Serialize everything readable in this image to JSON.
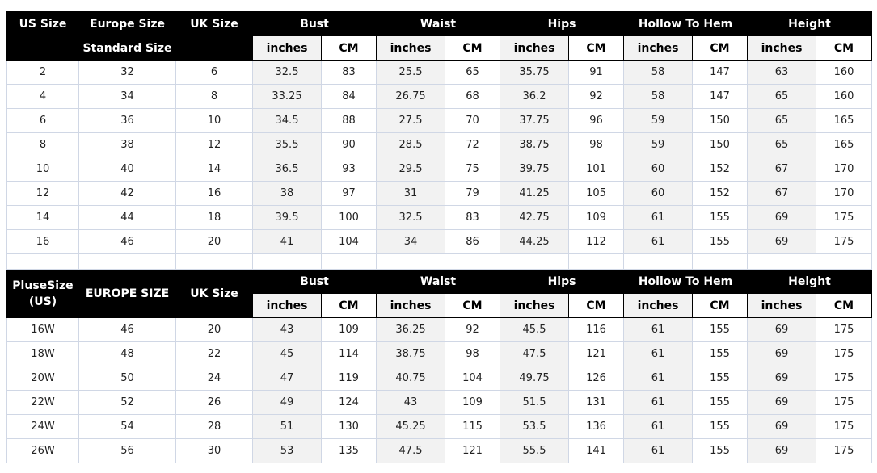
{
  "subheaders": [
    "inches",
    "CM"
  ],
  "groups": [
    "Bust",
    "Waist",
    "Hips",
    "Hollow To Hem",
    "Height"
  ],
  "table1": {
    "headers": [
      "US Size",
      "Europe Size",
      "UK Size"
    ],
    "second_row_label": "Standard Size",
    "rows": [
      [
        "2",
        "32",
        "6",
        "32.5",
        "83",
        "25.5",
        "65",
        "35.75",
        "91",
        "58",
        "147",
        "63",
        "160"
      ],
      [
        "4",
        "34",
        "8",
        "33.25",
        "84",
        "26.75",
        "68",
        "36.2",
        "92",
        "58",
        "147",
        "65",
        "160"
      ],
      [
        "6",
        "36",
        "10",
        "34.5",
        "88",
        "27.5",
        "70",
        "37.75",
        "96",
        "59",
        "150",
        "65",
        "165"
      ],
      [
        "8",
        "38",
        "12",
        "35.5",
        "90",
        "28.5",
        "72",
        "38.75",
        "98",
        "59",
        "150",
        "65",
        "165"
      ],
      [
        "10",
        "40",
        "14",
        "36.5",
        "93",
        "29.5",
        "75",
        "39.75",
        "101",
        "60",
        "152",
        "67",
        "170"
      ],
      [
        "12",
        "42",
        "16",
        "38",
        "97",
        "31",
        "79",
        "41.25",
        "105",
        "60",
        "152",
        "67",
        "170"
      ],
      [
        "14",
        "44",
        "18",
        "39.5",
        "100",
        "32.5",
        "83",
        "42.75",
        "109",
        "61",
        "155",
        "69",
        "175"
      ],
      [
        "16",
        "46",
        "20",
        "41",
        "104",
        "34",
        "86",
        "44.25",
        "112",
        "61",
        "155",
        "69",
        "175"
      ]
    ]
  },
  "table2": {
    "headers": [
      "PluseSize (US)",
      "EUROPE SIZE",
      "UK Size"
    ],
    "rows": [
      [
        "16W",
        "46",
        "20",
        "43",
        "109",
        "36.25",
        "92",
        "45.5",
        "116",
        "61",
        "155",
        "69",
        "175"
      ],
      [
        "18W",
        "48",
        "22",
        "45",
        "114",
        "38.75",
        "98",
        "47.5",
        "121",
        "61",
        "155",
        "69",
        "175"
      ],
      [
        "20W",
        "50",
        "24",
        "47",
        "119",
        "40.75",
        "104",
        "49.75",
        "126",
        "61",
        "155",
        "69",
        "175"
      ],
      [
        "22W",
        "52",
        "26",
        "49",
        "124",
        "43",
        "109",
        "51.5",
        "131",
        "61",
        "155",
        "69",
        "175"
      ],
      [
        "24W",
        "54",
        "28",
        "51",
        "130",
        "45.25",
        "115",
        "53.5",
        "136",
        "61",
        "155",
        "69",
        "175"
      ],
      [
        "26W",
        "56",
        "30",
        "53",
        "135",
        "47.5",
        "121",
        "55.5",
        "141",
        "61",
        "155",
        "69",
        "175"
      ]
    ]
  }
}
